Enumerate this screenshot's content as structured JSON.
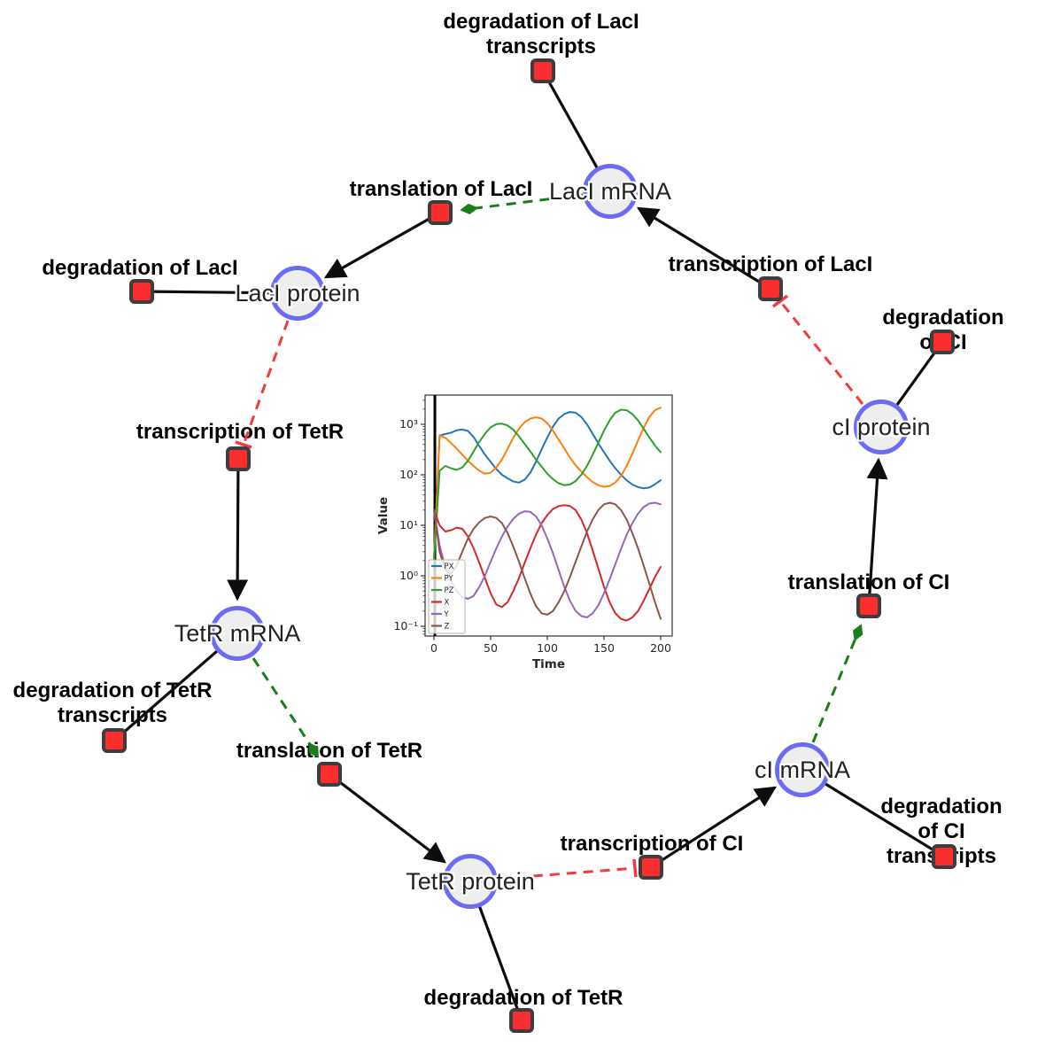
{
  "diagram": {
    "species": [
      {
        "id": "laci-mrna",
        "label": "LacI mRNA"
      },
      {
        "id": "laci-protein",
        "label": "LacI protein"
      },
      {
        "id": "tetr-mrna",
        "label": "TetR mRNA"
      },
      {
        "id": "tetr-protein",
        "label": "TetR protein"
      },
      {
        "id": "ci-mrna",
        "label": "cI mRNA"
      },
      {
        "id": "ci-protein",
        "label": "cI protein"
      }
    ],
    "reactions": [
      {
        "id": "deg-laci-transcripts",
        "label": "degradation of LacI\ntranscripts"
      },
      {
        "id": "translation-laci",
        "label": "translation of LacI"
      },
      {
        "id": "transcription-laci",
        "label": "transcription of LacI"
      },
      {
        "id": "deg-laci",
        "label": "degradation of LacI"
      },
      {
        "id": "deg-ci",
        "label": "degradation of CI"
      },
      {
        "id": "transcription-tetr",
        "label": "transcription of TetR"
      },
      {
        "id": "deg-tetr-transcripts",
        "label": "degradation of TetR\ntranscripts"
      },
      {
        "id": "translation-tetr",
        "label": "translation of TetR"
      },
      {
        "id": "translation-ci",
        "label": "translation of CI"
      },
      {
        "id": "transcription-ci",
        "label": "transcription of CI"
      },
      {
        "id": "deg-ci-transcripts",
        "label": "degradation of CI\ntranscripts"
      },
      {
        "id": "deg-tetr",
        "label": "degradation of TetR"
      }
    ],
    "edges": [
      {
        "source": "LacI mRNA",
        "target": "degradation of LacI transcripts",
        "type": "reactant"
      },
      {
        "source": "transcription of LacI",
        "target": "LacI mRNA",
        "type": "product"
      },
      {
        "source": "LacI mRNA",
        "target": "translation of LacI",
        "type": "modifier"
      },
      {
        "source": "translation of LacI",
        "target": "LacI protein",
        "type": "product"
      },
      {
        "source": "LacI protein",
        "target": "degradation of LacI",
        "type": "reactant"
      },
      {
        "source": "LacI protein",
        "target": "transcription of TetR",
        "type": "inhibitor"
      },
      {
        "source": "transcription of TetR",
        "target": "TetR mRNA",
        "type": "product"
      },
      {
        "source": "TetR mRNA",
        "target": "degradation of TetR transcripts",
        "type": "reactant"
      },
      {
        "source": "TetR mRNA",
        "target": "translation of TetR",
        "type": "modifier"
      },
      {
        "source": "translation of TetR",
        "target": "TetR protein",
        "type": "product"
      },
      {
        "source": "TetR protein",
        "target": "degradation of TetR",
        "type": "reactant"
      },
      {
        "source": "TetR protein",
        "target": "transcription of CI",
        "type": "inhibitor"
      },
      {
        "source": "transcription of CI",
        "target": "cI mRNA",
        "type": "product"
      },
      {
        "source": "cI mRNA",
        "target": "degradation of CI transcripts",
        "type": "reactant"
      },
      {
        "source": "cI mRNA",
        "target": "translation of CI",
        "type": "modifier"
      },
      {
        "source": "translation of CI",
        "target": "cI protein",
        "type": "product"
      },
      {
        "source": "cI protein",
        "target": "degradation of CI",
        "type": "reactant"
      },
      {
        "source": "cI protein",
        "target": "transcription of LacI",
        "type": "inhibitor"
      }
    ],
    "colors": {
      "species_fill": "#eeeeee",
      "species_border": "#6b6bf5",
      "reaction_fill": "#fa2e2e",
      "reaction_border": "#3d3d3d",
      "edge": "#0d0d0d",
      "modifier_edge": "#1a7d1a",
      "inhibitor_edge": "#f23c3c"
    }
  },
  "chart_data": {
    "type": "line",
    "title": "",
    "xlabel": "Time",
    "ylabel": "Value",
    "yscale": "log",
    "xlim": [
      0,
      200
    ],
    "ylim_exponents": [
      -1,
      3
    ],
    "xticks": [
      0,
      50,
      100,
      150,
      200
    ],
    "ytick_labels": [
      "10³",
      "10²",
      "10¹",
      "10⁰",
      "10⁻¹"
    ],
    "ytick_exponents": [
      3,
      2,
      1,
      0,
      -1
    ],
    "legend_position": "lower left",
    "grid": false,
    "vline_x": 0.8,
    "x": [
      0,
      5,
      10,
      15,
      20,
      25,
      30,
      35,
      40,
      45,
      50,
      55,
      60,
      65,
      70,
      75,
      80,
      85,
      90,
      95,
      100,
      105,
      110,
      115,
      120,
      125,
      130,
      135,
      140,
      145,
      150,
      155,
      160,
      165,
      170,
      175,
      180,
      185,
      190,
      195,
      200
    ],
    "series": [
      {
        "name": "PX",
        "color": "#1f77b4",
        "values": [
          2,
          600,
          640,
          680,
          760,
          790,
          740,
          560,
          370,
          250,
          180,
          130,
          100,
          85,
          74,
          70,
          80,
          110,
          180,
          320,
          550,
          900,
          1300,
          1600,
          1750,
          1700,
          1400,
          1000,
          650,
          420,
          280,
          190,
          135,
          100,
          78,
          64,
          57,
          54,
          56,
          65,
          78
        ]
      },
      {
        "name": "PY",
        "color": "#ff7f0e",
        "values": [
          2,
          600,
          540,
          430,
          330,
          250,
          190,
          150,
          120,
          105,
          110,
          140,
          200,
          330,
          540,
          820,
          1100,
          1300,
          1380,
          1300,
          1050,
          750,
          500,
          330,
          220,
          155,
          115,
          90,
          72,
          62,
          58,
          60,
          70,
          95,
          150,
          260,
          480,
          850,
          1400,
          1900,
          2150
        ]
      },
      {
        "name": "PZ",
        "color": "#2ca02c",
        "values": [
          2,
          120,
          150,
          135,
          125,
          140,
          190,
          290,
          450,
          650,
          870,
          1010,
          1030,
          950,
          780,
          580,
          410,
          290,
          200,
          145,
          105,
          82,
          68,
          62,
          64,
          75,
          100,
          150,
          250,
          430,
          750,
          1200,
          1700,
          1950,
          1900,
          1600,
          1200,
          820,
          550,
          380,
          280
        ]
      },
      {
        "name": "X",
        "color": "#d62728",
        "values": [
          20,
          10,
          7.5,
          8,
          9,
          8.5,
          6,
          3.5,
          1.8,
          0.9,
          0.45,
          0.27,
          0.24,
          0.3,
          0.5,
          0.9,
          1.8,
          3.5,
          6.5,
          11,
          16,
          21,
          24,
          25,
          24,
          20,
          13,
          7,
          3.2,
          1.4,
          0.6,
          0.3,
          0.18,
          0.14,
          0.13,
          0.15,
          0.2,
          0.32,
          0.55,
          0.95,
          1.5
        ]
      },
      {
        "name": "Y",
        "color": "#9467bd",
        "values": [
          20,
          4,
          1.5,
          0.8,
          0.5,
          0.38,
          0.35,
          0.4,
          0.6,
          1.0,
          1.9,
          3.5,
          6,
          9.5,
          13.5,
          17,
          19,
          18.5,
          15,
          10,
          5.5,
          2.8,
          1.3,
          0.6,
          0.32,
          0.2,
          0.16,
          0.15,
          0.18,
          0.26,
          0.45,
          0.85,
          1.7,
          3.4,
          6.5,
          11,
          17,
          23,
          27,
          28,
          26
        ]
      },
      {
        "name": "Z",
        "color": "#8c564b",
        "values": [
          20,
          3,
          1.3,
          1.1,
          1.6,
          3,
          5.5,
          8.5,
          11.5,
          14,
          15,
          14,
          11,
          7,
          3.8,
          1.9,
          0.9,
          0.45,
          0.25,
          0.18,
          0.17,
          0.2,
          0.3,
          0.5,
          0.95,
          1.9,
          3.8,
          7.5,
          13,
          20,
          26,
          28,
          26,
          20,
          13,
          7,
          3.5,
          1.6,
          0.7,
          0.3,
          0.14
        ]
      }
    ]
  }
}
